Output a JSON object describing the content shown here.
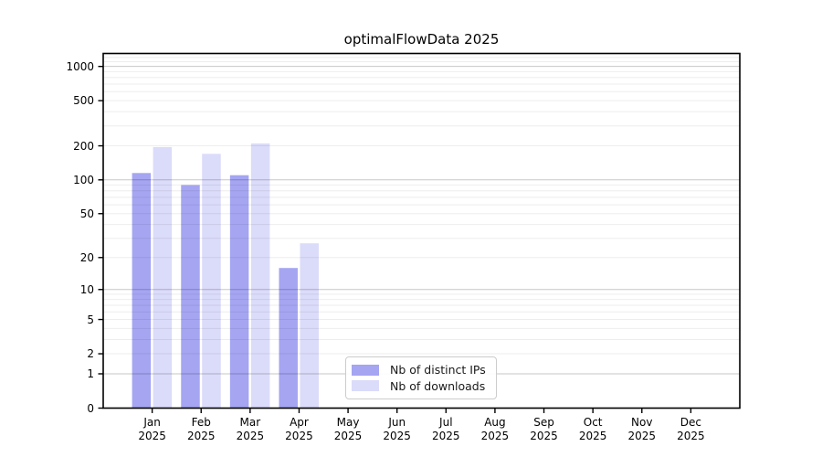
{
  "title": "optimalFlowData 2025",
  "chart_data": {
    "type": "bar",
    "scale": "log1p",
    "title": "optimalFlowData 2025",
    "xlabel": "",
    "ylabel": "",
    "categories": [
      {
        "month": "Jan",
        "year": "2025"
      },
      {
        "month": "Feb",
        "year": "2025"
      },
      {
        "month": "Mar",
        "year": "2025"
      },
      {
        "month": "Apr",
        "year": "2025"
      },
      {
        "month": "May",
        "year": "2025"
      },
      {
        "month": "Jun",
        "year": "2025"
      },
      {
        "month": "Jul",
        "year": "2025"
      },
      {
        "month": "Aug",
        "year": "2025"
      },
      {
        "month": "Sep",
        "year": "2025"
      },
      {
        "month": "Oct",
        "year": "2025"
      },
      {
        "month": "Nov",
        "year": "2025"
      },
      {
        "month": "Dec",
        "year": "2025"
      }
    ],
    "series": [
      {
        "name": "Nb of distinct IPs",
        "color": "#a5a5f2",
        "values": [
          115,
          90,
          110,
          16,
          0,
          0,
          0,
          0,
          0,
          0,
          0,
          0
        ]
      },
      {
        "name": "Nb of downloads",
        "color": "#dbdbfa",
        "values": [
          195,
          170,
          210,
          27,
          0,
          0,
          0,
          0,
          0,
          0,
          0,
          0
        ]
      }
    ],
    "yticks": [
      1000,
      500,
      200,
      100,
      50,
      20,
      10,
      5,
      2,
      1,
      0
    ],
    "ylim": [
      0,
      1300
    ],
    "grid": {
      "on": true,
      "major_values": [
        1,
        10,
        100,
        1000
      ],
      "minor_values": [
        2,
        3,
        4,
        5,
        6,
        7,
        8,
        9,
        20,
        30,
        40,
        50,
        60,
        70,
        80,
        90,
        200,
        300,
        400,
        500,
        600,
        700,
        800,
        900,
        1100,
        1200
      ],
      "major_color": "rgba(0,0,0,0.22)",
      "minor_color": "rgba(0,0,0,0.07)"
    },
    "legend_position": "inside lower-center-left"
  }
}
